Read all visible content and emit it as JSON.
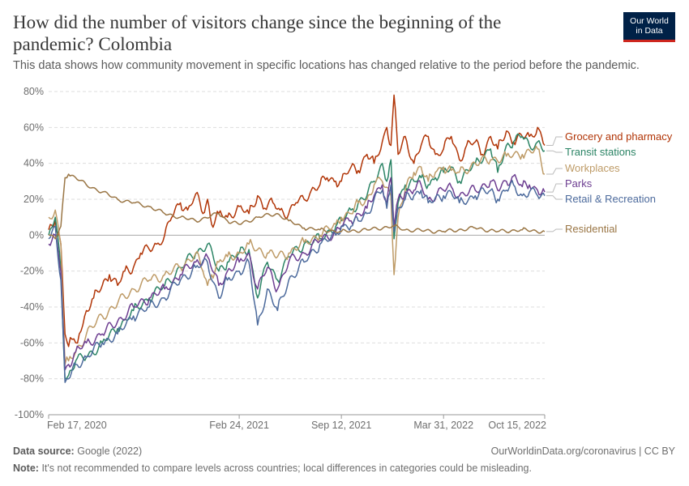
{
  "header": {
    "title": "How did the number of visitors change since the beginning of the pandemic? Colombia",
    "subtitle": "This data shows how community movement in specific locations has changed relative to the period before the pandemic.",
    "logo_line1": "Our World",
    "logo_line2": "in Data"
  },
  "footer": {
    "source_label": "Data source:",
    "source_value": "Google (2022)",
    "url": "OurWorldinData.org/coronavirus | CC BY",
    "note_label": "Note:",
    "note_value": "It's not recommended to compare levels across countries; local differences in categories could be misleading."
  },
  "chart_data": {
    "type": "line",
    "title": "How did the number of visitors change since the beginning of the pandemic? Colombia",
    "xlabel": "",
    "ylabel": "",
    "ylim": [
      -100,
      80
    ],
    "y_ticks": [
      -100,
      -80,
      -60,
      -40,
      -20,
      0,
      20,
      40,
      60,
      80
    ],
    "y_tick_labels": [
      "-100%",
      "-80%",
      "-60%",
      "-40%",
      "-20%",
      "0%",
      "20%",
      "40%",
      "60%",
      "80%"
    ],
    "xlim": [
      "2020-02-17",
      "2022-10-15"
    ],
    "x_ticks": [
      "2020-02-17",
      "2021-02-24",
      "2021-09-12",
      "2022-03-31",
      "2022-10-15"
    ],
    "x_tick_labels": [
      "Feb 17, 2020",
      "Feb 24, 2021",
      "Sep 12, 2021",
      "Mar 31, 2022",
      "Oct 15, 2022"
    ],
    "grid": "horizontal dashed",
    "legend": "right, labels at line ends",
    "series": [
      {
        "name": "Grocery and pharmacy",
        "color": "#b13507",
        "x": [
          "2020-02-17",
          "2020-03-01",
          "2020-03-12",
          "2020-03-20",
          "2020-03-27",
          "2020-04-03",
          "2020-04-10",
          "2020-04-17",
          "2020-04-24",
          "2020-05-01",
          "2020-05-15",
          "2020-06-01",
          "2020-06-15",
          "2020-07-01",
          "2020-07-15",
          "2020-08-01",
          "2020-08-15",
          "2020-09-01",
          "2020-09-15",
          "2020-10-01",
          "2020-10-15",
          "2020-11-01",
          "2020-11-15",
          "2020-12-01",
          "2020-12-15",
          "2020-12-24",
          "2021-01-01",
          "2021-01-15",
          "2021-02-01",
          "2021-02-24",
          "2021-03-15",
          "2021-04-01",
          "2021-04-15",
          "2021-05-01",
          "2021-05-15",
          "2021-06-01",
          "2021-06-15",
          "2021-07-01",
          "2021-07-15",
          "2021-08-01",
          "2021-08-15",
          "2021-09-01",
          "2021-09-12",
          "2021-10-01",
          "2021-10-15",
          "2021-11-01",
          "2021-11-15",
          "2021-12-01",
          "2021-12-10",
          "2021-12-18",
          "2021-12-24",
          "2022-01-01",
          "2022-01-15",
          "2022-02-01",
          "2022-02-15",
          "2022-03-01",
          "2022-03-15",
          "2022-03-31",
          "2022-04-15",
          "2022-05-01",
          "2022-05-15",
          "2022-06-01",
          "2022-06-15",
          "2022-07-01",
          "2022-07-15",
          "2022-08-01",
          "2022-08-15",
          "2022-09-01",
          "2022-09-15",
          "2022-10-01",
          "2022-10-15"
        ],
        "values": [
          3,
          8,
          -5,
          -55,
          -62,
          -58,
          -60,
          -55,
          -50,
          -42,
          -35,
          -28,
          -22,
          -28,
          -20,
          -18,
          -10,
          -8,
          -5,
          0,
          10,
          18,
          14,
          23,
          12,
          20,
          6,
          12,
          10,
          16,
          12,
          22,
          15,
          18,
          14,
          12,
          18,
          20,
          25,
          28,
          32,
          30,
          30,
          38,
          36,
          45,
          40,
          52,
          60,
          50,
          78,
          45,
          55,
          40,
          50,
          55,
          45,
          48,
          55,
          42,
          50,
          52,
          45,
          55,
          48,
          58,
          52,
          55,
          55,
          60,
          50
        ]
      },
      {
        "name": "Transit stations",
        "color": "#2b8465",
        "x": [
          "2020-02-17",
          "2020-03-01",
          "2020-03-12",
          "2020-03-20",
          "2020-03-27",
          "2020-04-10",
          "2020-05-01",
          "2020-06-01",
          "2020-07-01",
          "2020-08-01",
          "2020-09-01",
          "2020-10-01",
          "2020-11-01",
          "2020-12-01",
          "2020-12-24",
          "2021-01-15",
          "2021-02-01",
          "2021-02-24",
          "2021-03-15",
          "2021-04-01",
          "2021-04-20",
          "2021-05-10",
          "2021-06-01",
          "2021-07-01",
          "2021-08-01",
          "2021-09-01",
          "2021-09-12",
          "2021-10-01",
          "2021-10-15",
          "2021-11-01",
          "2021-11-15",
          "2021-12-01",
          "2021-12-10",
          "2021-12-18",
          "2021-12-24",
          "2022-01-01",
          "2022-01-15",
          "2022-02-01",
          "2022-02-15",
          "2022-03-01",
          "2022-03-15",
          "2022-03-31",
          "2022-04-15",
          "2022-05-01",
          "2022-06-01",
          "2022-07-01",
          "2022-07-15",
          "2022-08-01",
          "2022-08-15",
          "2022-09-01",
          "2022-09-15",
          "2022-10-01",
          "2022-10-15"
        ],
        "values": [
          0,
          10,
          -20,
          -80,
          -78,
          -70,
          -68,
          -60,
          -52,
          -42,
          -35,
          -28,
          -18,
          -10,
          -5,
          -20,
          -15,
          -10,
          -8,
          -35,
          -15,
          -25,
          -12,
          -5,
          -2,
          5,
          8,
          14,
          18,
          22,
          30,
          40,
          30,
          42,
          -2,
          18,
          28,
          30,
          32,
          28,
          32,
          35,
          38,
          30,
          40,
          48,
          35,
          50,
          52,
          55,
          50,
          52,
          47
        ]
      },
      {
        "name": "Workplaces",
        "color": "#be9b67",
        "x": [
          "2020-02-17",
          "2020-03-01",
          "2020-03-12",
          "2020-03-20",
          "2020-03-27",
          "2020-04-10",
          "2020-05-01",
          "2020-06-01",
          "2020-07-01",
          "2020-08-01",
          "2020-09-01",
          "2020-10-01",
          "2020-11-01",
          "2020-12-01",
          "2020-12-15",
          "2020-12-24",
          "2021-01-01",
          "2021-01-15",
          "2021-02-01",
          "2021-02-24",
          "2021-03-15",
          "2021-04-01",
          "2021-04-20",
          "2021-05-10",
          "2021-06-01",
          "2021-07-01",
          "2021-08-01",
          "2021-09-01",
          "2021-09-12",
          "2021-10-01",
          "2021-10-15",
          "2021-11-01",
          "2021-11-15",
          "2021-12-01",
          "2021-12-18",
          "2021-12-24",
          "2022-01-01",
          "2022-01-15",
          "2022-02-01",
          "2022-02-15",
          "2022-03-01",
          "2022-03-15",
          "2022-03-31",
          "2022-04-15",
          "2022-05-01",
          "2022-06-01",
          "2022-07-01",
          "2022-08-01",
          "2022-09-01",
          "2022-10-01",
          "2022-10-15"
        ],
        "values": [
          10,
          14,
          -5,
          -72,
          -70,
          -65,
          -55,
          -45,
          -38,
          -30,
          -25,
          -22,
          -18,
          -10,
          -20,
          -28,
          -22,
          -15,
          -12,
          -10,
          -5,
          -8,
          -10,
          -12,
          -10,
          -4,
          0,
          6,
          10,
          12,
          18,
          20,
          28,
          30,
          22,
          -22,
          10,
          25,
          35,
          38,
          30,
          35,
          38,
          36,
          35,
          40,
          42,
          44,
          45,
          48,
          34
        ]
      },
      {
        "name": "Parks",
        "color": "#6d3e91",
        "x": [
          "2020-02-17",
          "2020-03-01",
          "2020-03-12",
          "2020-03-20",
          "2020-03-27",
          "2020-04-10",
          "2020-05-01",
          "2020-06-01",
          "2020-07-01",
          "2020-08-01",
          "2020-09-01",
          "2020-10-01",
          "2020-11-01",
          "2020-12-01",
          "2020-12-24",
          "2021-01-15",
          "2021-02-01",
          "2021-02-24",
          "2021-03-15",
          "2021-04-01",
          "2021-04-20",
          "2021-05-10",
          "2021-06-01",
          "2021-07-01",
          "2021-08-01",
          "2021-09-01",
          "2021-09-12",
          "2021-10-01",
          "2021-10-15",
          "2021-11-01",
          "2021-11-15",
          "2021-12-01",
          "2021-12-10",
          "2021-12-18",
          "2021-12-24",
          "2022-01-01",
          "2022-01-15",
          "2022-02-01",
          "2022-02-15",
          "2022-03-01",
          "2022-03-31",
          "2022-04-15",
          "2022-05-01",
          "2022-06-01",
          "2022-07-01",
          "2022-07-15",
          "2022-08-01",
          "2022-08-15",
          "2022-09-01",
          "2022-09-15",
          "2022-10-01",
          "2022-10-15"
        ],
        "values": [
          -5,
          0,
          -20,
          -75,
          -72,
          -65,
          -60,
          -55,
          -48,
          -40,
          -35,
          -30,
          -22,
          -15,
          -12,
          -28,
          -20,
          -15,
          -10,
          -30,
          -18,
          -30,
          -15,
          -10,
          -3,
          2,
          5,
          8,
          12,
          15,
          22,
          28,
          18,
          32,
          5,
          20,
          24,
          25,
          28,
          20,
          25,
          27,
          22,
          25,
          30,
          25,
          30,
          33,
          27,
          28,
          25,
          24
        ]
      },
      {
        "name": "Retail & Recreation",
        "color": "#4c6a9c",
        "x": [
          "2020-02-17",
          "2020-03-01",
          "2020-03-12",
          "2020-03-20",
          "2020-03-27",
          "2020-04-10",
          "2020-05-01",
          "2020-06-01",
          "2020-07-01",
          "2020-08-01",
          "2020-09-01",
          "2020-10-01",
          "2020-11-01",
          "2020-12-01",
          "2020-12-24",
          "2021-01-15",
          "2021-02-01",
          "2021-02-24",
          "2021-03-15",
          "2021-04-01",
          "2021-04-20",
          "2021-05-10",
          "2021-06-01",
          "2021-07-01",
          "2021-08-01",
          "2021-09-01",
          "2021-09-12",
          "2021-10-01",
          "2021-10-15",
          "2021-11-01",
          "2021-11-15",
          "2021-12-01",
          "2021-12-10",
          "2021-12-18",
          "2021-12-24",
          "2022-01-01",
          "2022-01-15",
          "2022-02-01",
          "2022-02-15",
          "2022-03-01",
          "2022-03-31",
          "2022-04-15",
          "2022-05-01",
          "2022-06-01",
          "2022-07-01",
          "2022-07-15",
          "2022-08-01",
          "2022-08-15",
          "2022-09-01",
          "2022-09-15",
          "2022-10-01",
          "2022-10-15"
        ],
        "values": [
          -2,
          5,
          -25,
          -82,
          -80,
          -72,
          -68,
          -60,
          -55,
          -45,
          -40,
          -35,
          -25,
          -18,
          -15,
          -35,
          -25,
          -20,
          -15,
          -50,
          -30,
          -42,
          -25,
          -15,
          -5,
          0,
          5,
          5,
          8,
          12,
          20,
          25,
          15,
          28,
          2,
          15,
          20,
          22,
          25,
          18,
          22,
          24,
          18,
          22,
          25,
          20,
          25,
          28,
          22,
          24,
          22,
          22
        ]
      },
      {
        "name": "Residential",
        "color": "#9a7645",
        "x": [
          "2020-02-17",
          "2020-03-01",
          "2020-03-12",
          "2020-03-20",
          "2020-03-27",
          "2020-04-10",
          "2020-05-01",
          "2020-06-01",
          "2020-07-01",
          "2020-08-01",
          "2020-09-01",
          "2020-10-01",
          "2020-11-01",
          "2020-12-01",
          "2021-01-15",
          "2021-02-01",
          "2021-02-24",
          "2021-04-01",
          "2021-05-10",
          "2021-06-01",
          "2021-07-01",
          "2021-08-01",
          "2021-09-12",
          "2021-11-01",
          "2021-12-24",
          "2022-01-15",
          "2022-03-31",
          "2022-06-01",
          "2022-07-15",
          "2022-09-01",
          "2022-10-15"
        ],
        "values": [
          0,
          -2,
          5,
          32,
          34,
          32,
          28,
          24,
          20,
          18,
          16,
          12,
          10,
          8,
          12,
          8,
          6,
          10,
          12,
          8,
          4,
          3,
          2,
          3,
          5,
          3,
          2,
          4,
          2,
          3,
          2
        ]
      }
    ]
  }
}
